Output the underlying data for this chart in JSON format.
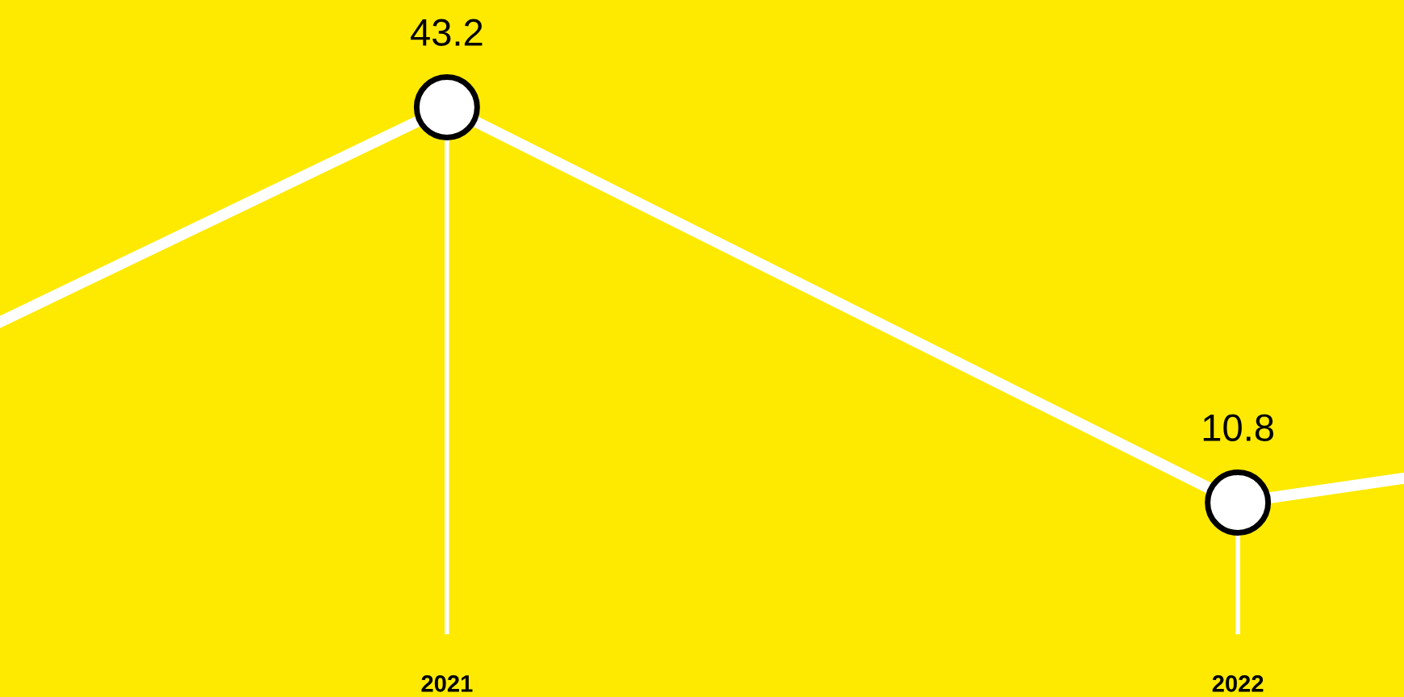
{
  "chart_data": {
    "type": "line",
    "x": [
      2020.435,
      2021,
      2022,
      2022.21
    ],
    "series": [
      {
        "color": "#ffffff",
        "values": [
          25.6,
          43.2,
          10.8,
          12.8
        ],
        "value_labels": [
          null,
          "43.2",
          "10.8",
          null
        ]
      }
    ],
    "xlim": [
      2020.435,
      2022.21
    ],
    "xticks": [
      2021,
      2022
    ],
    "ylim": [
      0,
      52
    ],
    "tick_labels": "x",
    "grid": false,
    "marker": "circle",
    "line_style": "solid",
    "ref_lines": [
      {
        "axis": "x",
        "value": 2021,
        "color": "#ffffff"
      },
      {
        "axis": "x",
        "value": 2022,
        "color": "#ffffff"
      }
    ]
  }
}
